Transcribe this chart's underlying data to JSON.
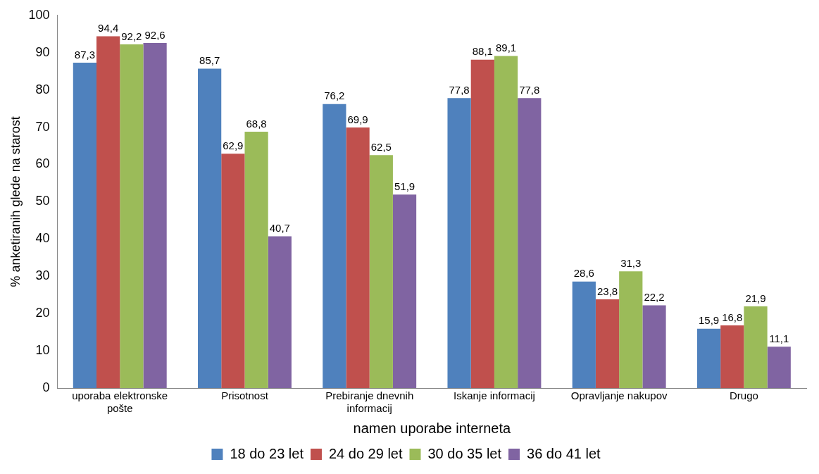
{
  "chart_data": {
    "type": "bar",
    "xlabel": "namen uporabe interneta",
    "ylabel": "% anketiranih glede na starost",
    "categories": [
      "uporaba elektronske pošte",
      "Prisotnost",
      "Prebiranje dnevnih informacij",
      "Iskanje informacij",
      "Opravljanje nakupov",
      "Drugo"
    ],
    "series": [
      {
        "name": "18 do 23 let",
        "color": "#4f81bd",
        "values": [
          87.3,
          85.7,
          76.2,
          77.8,
          28.6,
          15.9
        ],
        "value_labels": [
          "87,3",
          "85,7",
          "76,2",
          "77,8",
          "28,6",
          "15,9"
        ]
      },
      {
        "name": "24 do 29 let",
        "color": "#c0504d",
        "values": [
          94.4,
          62.9,
          69.9,
          88.1,
          23.8,
          16.8
        ],
        "value_labels": [
          "94,4",
          "62,9",
          "69,9",
          "88,1",
          "23,8",
          "16,8"
        ]
      },
      {
        "name": "30 do 35 let",
        "color": "#9bbb59",
        "values": [
          92.2,
          68.8,
          62.5,
          89.1,
          31.3,
          21.9
        ],
        "value_labels": [
          "92,2",
          "68,8",
          "62,5",
          "89,1",
          "31,3",
          "21,9"
        ]
      },
      {
        "name": "36 do 41 let",
        "color": "#8064a2",
        "values": [
          92.6,
          40.7,
          51.9,
          77.8,
          22.2,
          11.1
        ],
        "value_labels": [
          "92,6",
          "40,7",
          "51,9",
          "77,8",
          "22,2",
          "11,1"
        ]
      }
    ],
    "ylim": [
      0,
      100
    ],
    "yticks": [
      0,
      10,
      20,
      30,
      40,
      50,
      60,
      70,
      80,
      90,
      100
    ],
    "grid": false,
    "legend": "bottom"
  }
}
